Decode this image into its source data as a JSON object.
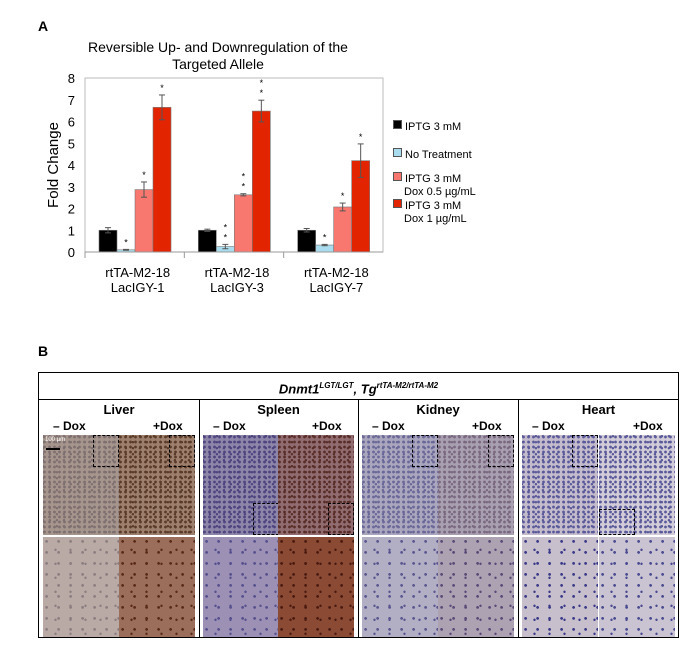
{
  "panel_a": {
    "label": "A"
  },
  "panel_b": {
    "label": "B",
    "header_main": "Dnmt1",
    "header_sup1": "LGT/LGT",
    "header_mid": ", Tg",
    "header_sup2": "rtTA-M2/rtTA-M2",
    "scale_bar": "100 µm",
    "minus_dox": "– Dox",
    "plus_dox": "+Dox",
    "tissues": [
      "Liver",
      "Spleen",
      "Kidney",
      "Heart"
    ]
  },
  "chart_data": {
    "type": "bar",
    "title": "Reversible Up- and Downregulation of the Targeted Allele",
    "title_lines": [
      "Reversible Up- and Downregulation of the",
      "Targeted Allele"
    ],
    "xlabel": "",
    "ylabel": "Fold Change",
    "ylim": [
      0,
      8
    ],
    "yticks": [
      0,
      1,
      2,
      3,
      4,
      5,
      6,
      7,
      8
    ],
    "grid": false,
    "legend_position": "right",
    "categories": [
      [
        "rtTA-M2-18",
        "LacIGY-1"
      ],
      [
        "rtTA-M2-18",
        "LacIGY-3"
      ],
      [
        "rtTA-M2-18",
        "LacIGY-7"
      ]
    ],
    "series": [
      {
        "name": "IPTG 3 mM",
        "legend_lines": [
          "IPTG 3 mM"
        ],
        "color": "#000000",
        "values": [
          1.0,
          1.0,
          1.0
        ],
        "errors": [
          0.12,
          0.05,
          0.08
        ],
        "stars": [
          "",
          "",
          ""
        ]
      },
      {
        "name": "No Treatment",
        "legend_lines": [
          "No Treatment"
        ],
        "color": "#a8dcee",
        "values": [
          0.1,
          0.25,
          0.32
        ],
        "errors": [
          0.02,
          0.1,
          0.03
        ],
        "stars": [
          "*",
          "**",
          "*"
        ]
      },
      {
        "name": "IPTG 3 mM Dox 0.5 µg/mL",
        "legend_lines": [
          "IPTG 3 mM",
          "Dox 0.5 µg/mL"
        ],
        "color": "#f8776f",
        "values": [
          2.87,
          2.63,
          2.07
        ],
        "errors": [
          0.35,
          0.05,
          0.18
        ],
        "stars": [
          "*",
          "**",
          "*"
        ]
      },
      {
        "name": "IPTG 3 mM Dox 1 µg/mL",
        "legend_lines": [
          "IPTG 3 mM",
          "Dox 1 µg/mL"
        ],
        "color": "#e32400",
        "values": [
          6.65,
          6.48,
          4.2
        ],
        "errors": [
          0.57,
          0.5,
          0.77
        ],
        "stars": [
          "*",
          "**",
          "*"
        ]
      }
    ]
  }
}
